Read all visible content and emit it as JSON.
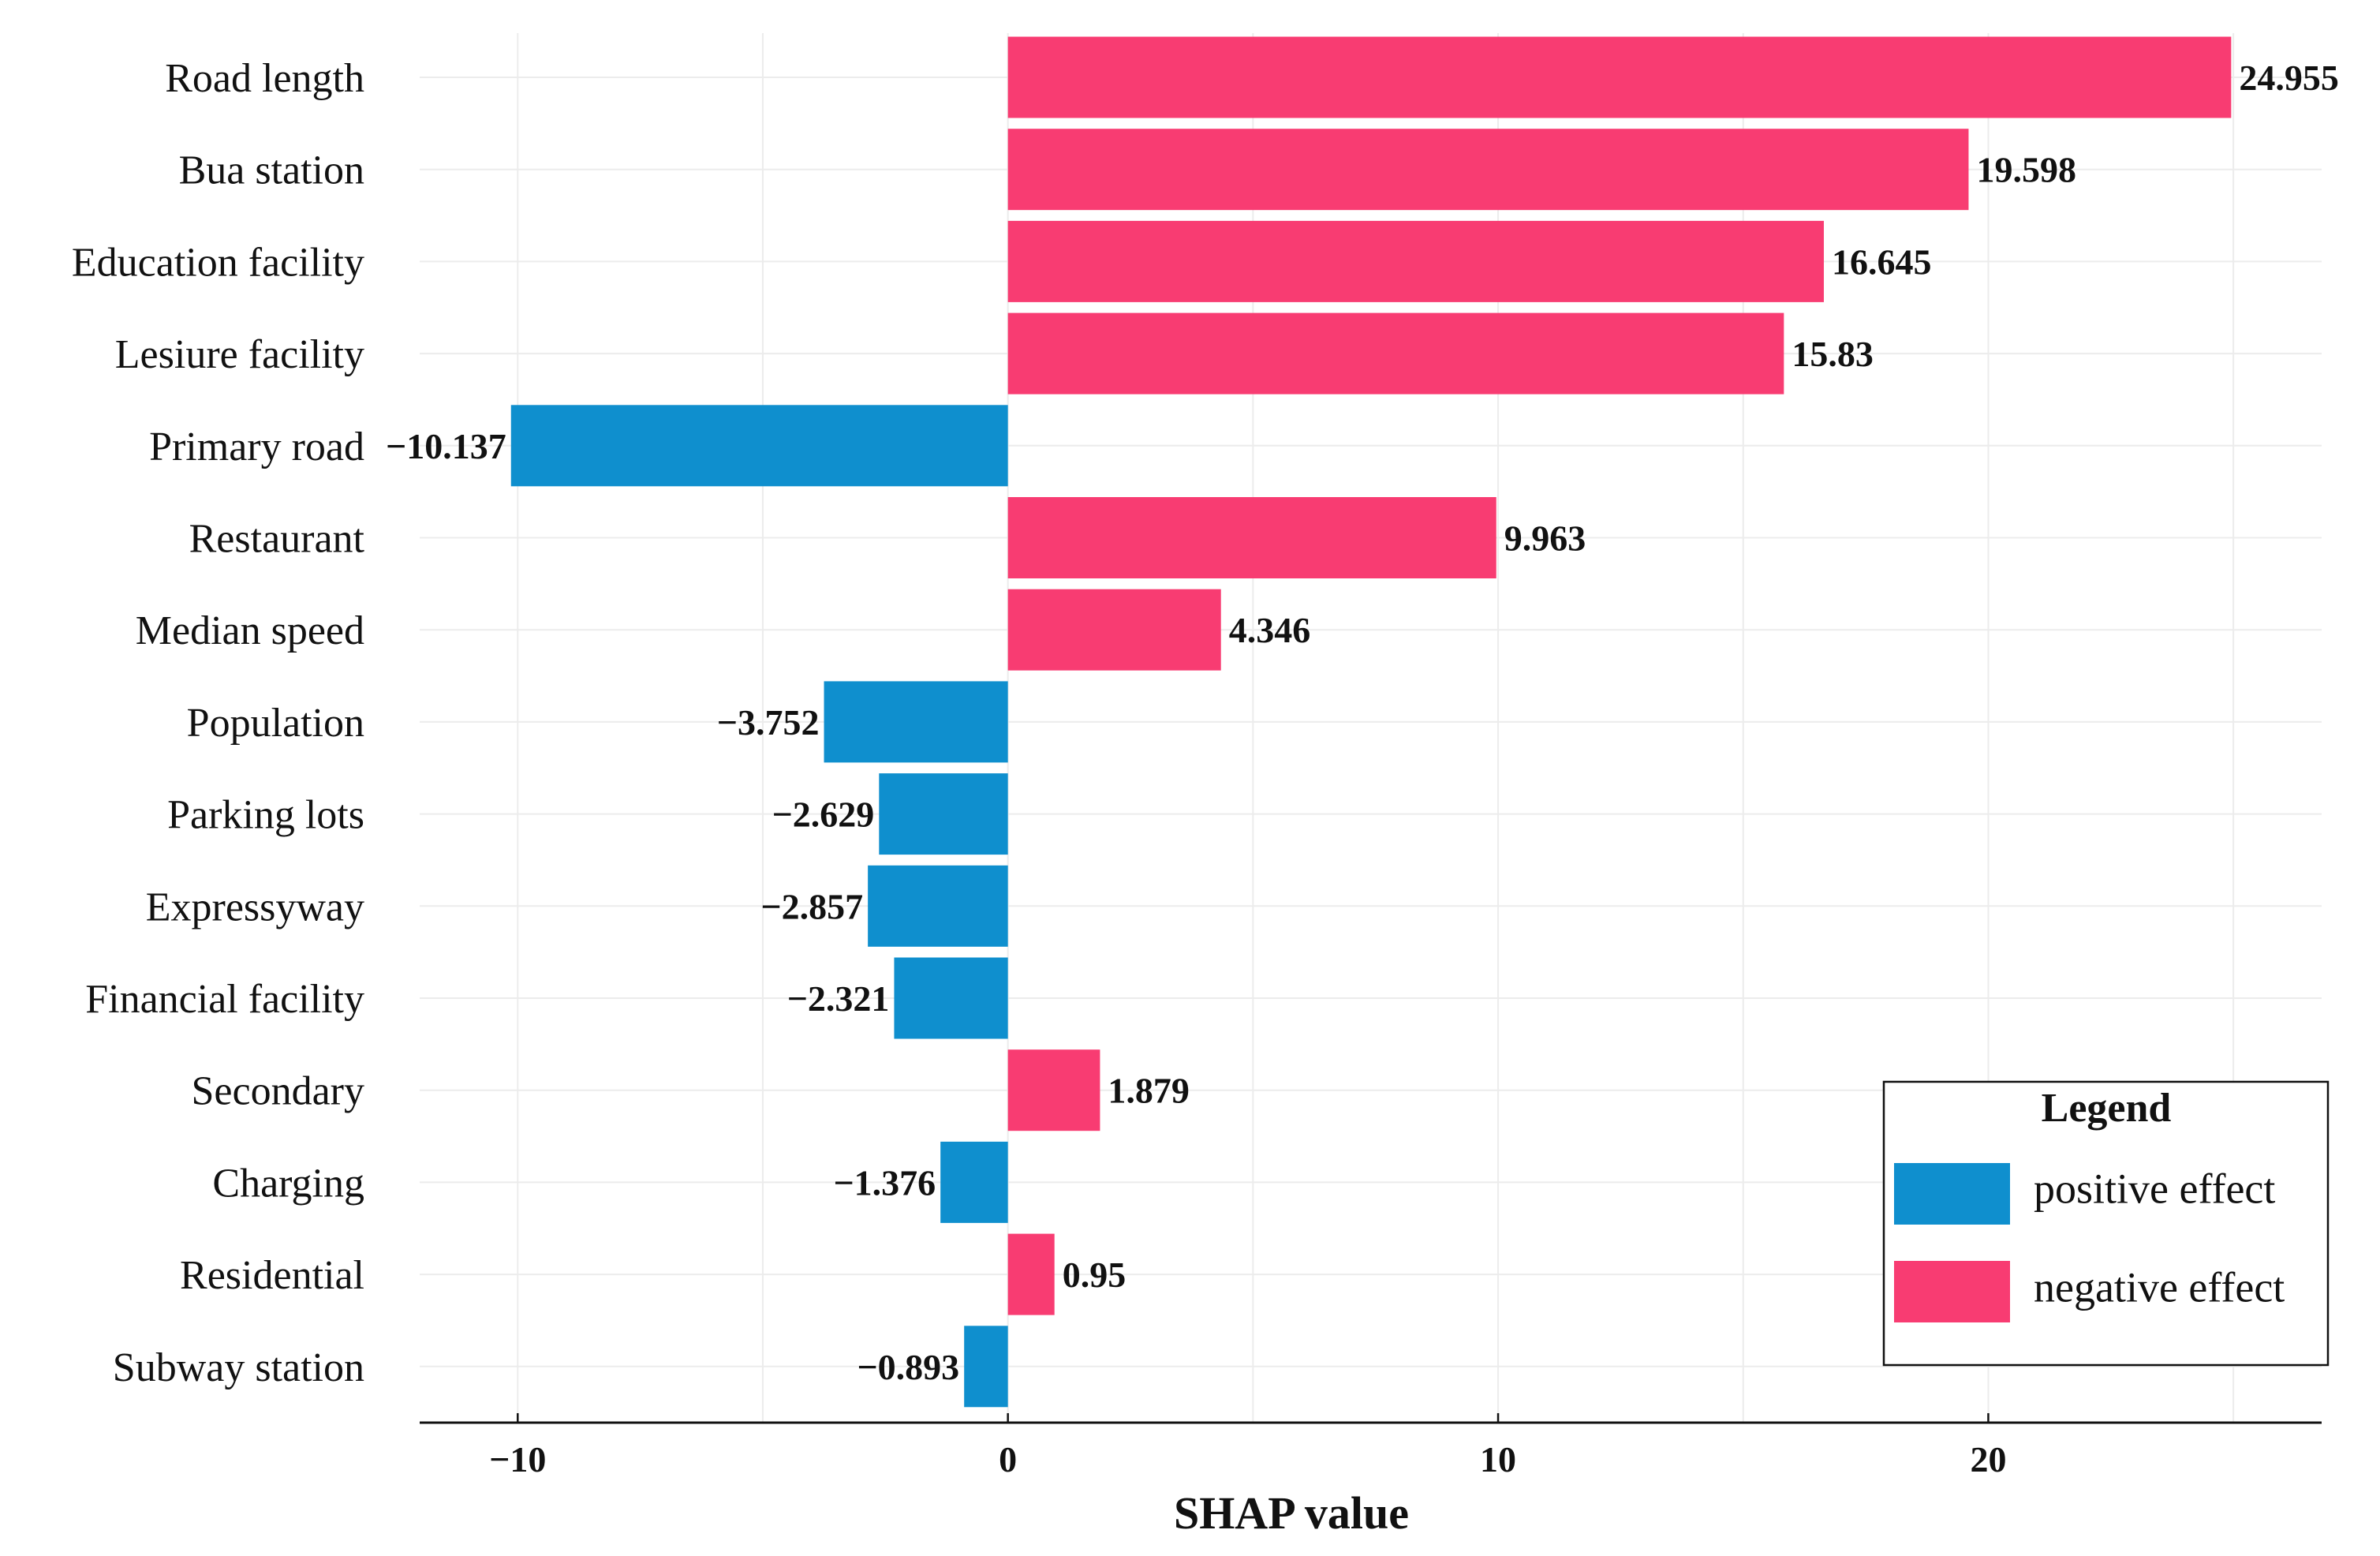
{
  "chart_data": {
    "type": "bar",
    "orientation": "horizontal",
    "title": "",
    "xlabel": "SHAP value",
    "ylabel": "",
    "xlim": [
      -12,
      26.8
    ],
    "xticks": [
      -10,
      0,
      10,
      20
    ],
    "xtick_labels": [
      "−10",
      "0",
      "10",
      "20"
    ],
    "grid": true,
    "categories": [
      "Road length",
      "Bua station",
      "Education facility",
      "Lesiure facility",
      "Primary road",
      "Restaurant",
      "Median speed",
      "Population",
      "Parking lots",
      "Expressyway",
      "Financial facility",
      "Secondary",
      "Charging",
      "Residential",
      "Subway station"
    ],
    "values": [
      24.955,
      19.598,
      16.645,
      15.83,
      -10.137,
      9.963,
      4.346,
      -3.752,
      -2.629,
      -2.857,
      -2.321,
      1.879,
      -1.376,
      0.95,
      -0.893
    ],
    "value_labels": [
      "24.955",
      "19.598",
      "16.645",
      "15.83",
      "−10.137",
      "9.963",
      "4.346",
      "−3.752",
      "−2.629",
      "−2.857",
      "−2.321",
      "1.879",
      "−1.376",
      "0.95",
      "−0.893"
    ],
    "legend": {
      "title": "Legend",
      "position": "bottom-right",
      "entries": [
        {
          "label": "positive effect",
          "color": "#0f8fce"
        },
        {
          "label": "negative effect",
          "color": "#f83c72"
        }
      ]
    },
    "colors": {
      "positive_effect": "#0f8fce",
      "negative_effect": "#f83c72",
      "grid": "#ececec",
      "axis": "#111111"
    }
  }
}
